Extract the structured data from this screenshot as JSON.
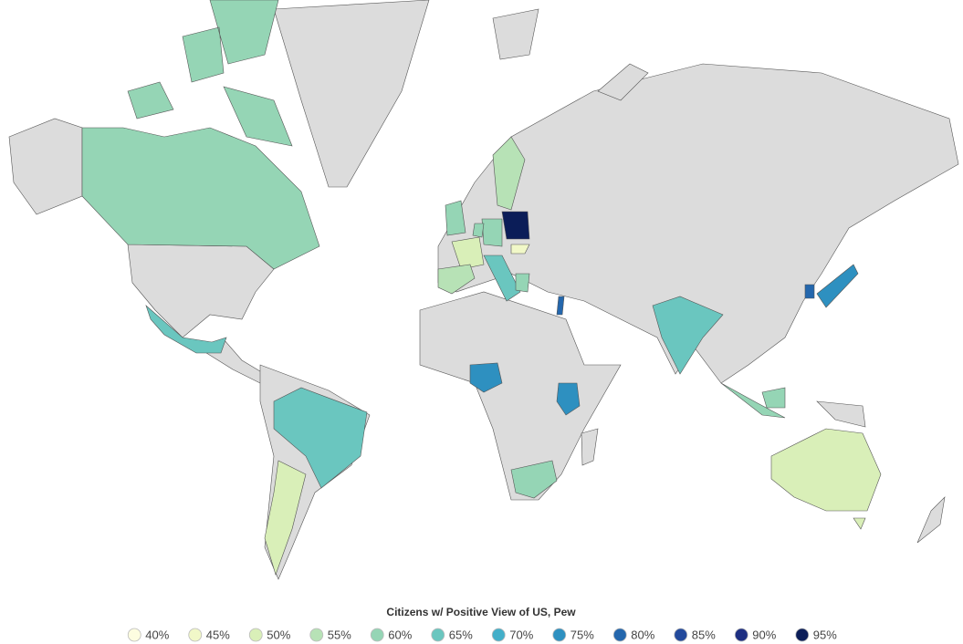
{
  "chart_data": {
    "type": "choropleth",
    "title": "Citizens w/ Positive View of US, Pew",
    "legend": [
      {
        "value": 40,
        "label": "40%",
        "color": "#fdfde0"
      },
      {
        "value": 45,
        "label": "45%",
        "color": "#f1f8c8"
      },
      {
        "value": 50,
        "label": "50%",
        "color": "#d9efb8"
      },
      {
        "value": 55,
        "label": "55%",
        "color": "#b7e2b6"
      },
      {
        "value": 60,
        "label": "60%",
        "color": "#95d5b5"
      },
      {
        "value": 65,
        "label": "65%",
        "color": "#6ac6bf"
      },
      {
        "value": 70,
        "label": "70%",
        "color": "#43afc9"
      },
      {
        "value": 75,
        "label": "75%",
        "color": "#2e90c0"
      },
      {
        "value": 80,
        "label": "80%",
        "color": "#2467ad"
      },
      {
        "value": 85,
        "label": "85%",
        "color": "#234a9c"
      },
      {
        "value": 90,
        "label": "90%",
        "color": "#1e2f82"
      },
      {
        "value": 95,
        "label": "95%",
        "color": "#0b1d58"
      }
    ],
    "values": [
      60,
      65,
      65,
      50,
      60,
      50,
      55,
      60,
      95,
      45,
      65,
      55,
      60,
      80,
      75,
      75,
      60,
      65,
      75,
      80,
      60,
      60,
      50
    ]
  }
}
